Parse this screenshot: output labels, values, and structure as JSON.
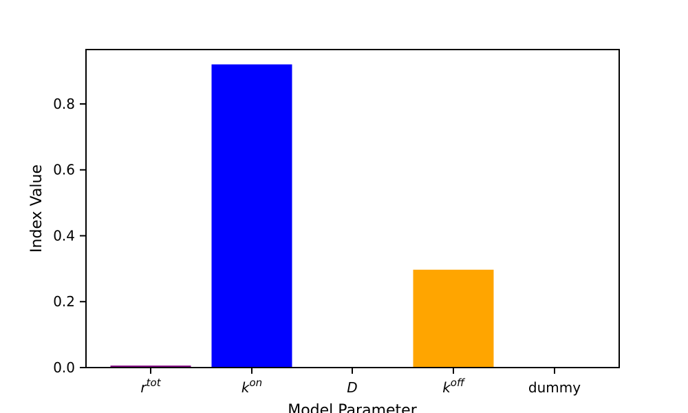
{
  "chart_data": {
    "type": "bar",
    "xlabel": "Model Parameter",
    "ylabel": "Index Value",
    "ylim": [
      0,
      0.965
    ],
    "yticks": [
      0.0,
      0.2,
      0.4,
      0.6,
      0.8
    ],
    "ytick_labels": [
      "0.0",
      "0.2",
      "0.4",
      "0.6",
      "0.8"
    ],
    "grid": false,
    "categories": [
      {
        "main": "r",
        "sup": "tot",
        "italic": true
      },
      {
        "main": "k",
        "sup": "on",
        "italic": true
      },
      {
        "main": "D",
        "sup": "",
        "italic": true
      },
      {
        "main": "k",
        "sup": "off",
        "italic": true
      },
      {
        "main": "dummy",
        "sup": "",
        "italic": false
      }
    ],
    "values": [
      0.006,
      0.92,
      0.0,
      0.297,
      0.0
    ],
    "colors": [
      "#800080",
      "#0000ff",
      "#008000",
      "#ffa500",
      "#808080"
    ]
  }
}
